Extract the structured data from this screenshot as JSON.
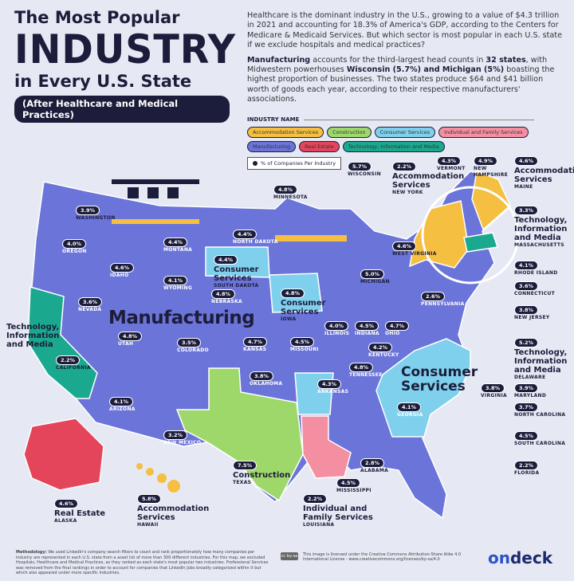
{
  "header": {
    "line1": "The Most Popular",
    "line2": "INDUSTRY",
    "line3": "in Every U.S. State",
    "subtitle": "(After Healthcare and Medical Practices)"
  },
  "intro": {
    "p1": "Healthcare is the dominant industry in the U.S., growing to a value of $4.3 trillion in 2021 and accounting for 18.3% of America's GDP, according to the Centers for Medicare & Medicaid Services. But which sector is most popular in each U.S. state if we exclude hospitals and medical practices?",
    "p2_bold1": "Manufacturing",
    "p2_a": " accounts for the third-largest head counts in ",
    "p2_bold2": "32 states",
    "p2_b": ", with Midwestern powerhouses ",
    "p2_bold3": "Wisconsin (5.7%) and Michigan (5%)",
    "p2_c": " boasting the highest proportion of businesses. The two states produce $64 and $41 billion worth of goods each year, according to their respective manufacturers' associations."
  },
  "legend": {
    "heading": "INDUSTRY NAME",
    "items": [
      {
        "label": "Accommodation Services",
        "color": "#f5bf42"
      },
      {
        "label": "Construction",
        "color": "#9ed86b"
      },
      {
        "label": "Consumer Services",
        "color": "#7fd0ec"
      },
      {
        "label": "Individual and Family Services",
        "color": "#f48fa2"
      },
      {
        "label": "Manufacturing",
        "color": "#6b74d9"
      },
      {
        "label": "Real Estate",
        "color": "#e4455a"
      },
      {
        "label": "Technology, Information and Media",
        "color": "#1aa98f"
      }
    ],
    "key": "% of Companies Per Industry"
  },
  "states": [
    {
      "name": "WASHINGTON",
      "pct": "3.9%"
    },
    {
      "name": "OREGON",
      "pct": "4.0%"
    },
    {
      "name": "IDAHO",
      "pct": "4.6%"
    },
    {
      "name": "MONTANA",
      "pct": "4.4%"
    },
    {
      "name": "WYOMING",
      "pct": "4.1%"
    },
    {
      "name": "NEVADA",
      "pct": "3.6%"
    },
    {
      "name": "UTAH",
      "pct": "4.8%"
    },
    {
      "name": "COLORADO",
      "pct": "3.5%"
    },
    {
      "name": "ARIZONA",
      "pct": "4.1%"
    },
    {
      "name": "NEW MEXICO",
      "pct": "3.2%"
    },
    {
      "name": "CALIFORNIA",
      "pct": "2.2%"
    },
    {
      "name": "NORTH DAKOTA",
      "pct": "4.4%"
    },
    {
      "name": "SOUTH DAKOTA",
      "pct": "4.4%",
      "industry": "Consumer Services"
    },
    {
      "name": "NEBRASKA",
      "pct": "4.8%"
    },
    {
      "name": "KANSAS",
      "pct": "4.7%"
    },
    {
      "name": "OKLAHOMA",
      "pct": "3.8%"
    },
    {
      "name": "TEXAS",
      "pct": "7.5%",
      "industry": "Construction"
    },
    {
      "name": "MINNESOTA",
      "pct": "4.8%"
    },
    {
      "name": "IOWA",
      "pct": "4.8%",
      "industry": "Consumer Services"
    },
    {
      "name": "MISSOURI",
      "pct": "4.5%"
    },
    {
      "name": "ARKANSAS",
      "pct": "4.3%"
    },
    {
      "name": "LOUISIANA",
      "pct": "2.2%",
      "industry": "Individual and Family Services"
    },
    {
      "name": "WISCONSIN",
      "pct": "5.7%"
    },
    {
      "name": "ILLINOIS",
      "pct": "4.0%"
    },
    {
      "name": "MICHIGAN",
      "pct": "5.0%"
    },
    {
      "name": "INDIANA",
      "pct": "4.5%"
    },
    {
      "name": "OHIO",
      "pct": "4.7%"
    },
    {
      "name": "KENTUCKY",
      "pct": "4.2%"
    },
    {
      "name": "TENNESSEE",
      "pct": "4.8%"
    },
    {
      "name": "MISSISSIPPI",
      "pct": "4.5%"
    },
    {
      "name": "ALABAMA",
      "pct": "2.8%"
    },
    {
      "name": "GEORGIA",
      "pct": "4.1%"
    },
    {
      "name": "FLORIDA",
      "pct": "2.2%"
    },
    {
      "name": "SOUTH CAROLINA",
      "pct": "4.5%"
    },
    {
      "name": "NORTH CAROLINA",
      "pct": "3.7%"
    },
    {
      "name": "VIRGINIA",
      "pct": "3.8%"
    },
    {
      "name": "MARYLAND",
      "pct": "3.9%"
    },
    {
      "name": "DELAWARE",
      "pct": "5.2%",
      "industry": "Technology, Information and Media"
    },
    {
      "name": "NEW JERSEY",
      "pct": "3.8%"
    },
    {
      "name": "CONNECTICUT",
      "pct": "3.6%"
    },
    {
      "name": "RHODE ISLAND",
      "pct": "4.1%"
    },
    {
      "name": "MASSACHUSETTS",
      "pct": "3.3%",
      "industry": "Technology, Information and Media"
    },
    {
      "name": "MAINE",
      "pct": "4.6%",
      "industry": "Accommodation Services"
    },
    {
      "name": "NEW HAMPSHIRE",
      "pct": "4.9%"
    },
    {
      "name": "VERMONT",
      "pct": "4.3%"
    },
    {
      "name": "NEW YORK",
      "pct": "2.2%",
      "industry": "Accommodation Services"
    },
    {
      "name": "WEST VIRGINIA",
      "pct": "4.6%"
    },
    {
      "name": "PENNSYLVANIA",
      "pct": "2.6%"
    },
    {
      "name": "ALASKA",
      "pct": "4.6%",
      "industry": "Real Estate"
    },
    {
      "name": "HAWAII",
      "pct": "5.8%",
      "industry": "Accommodation Services"
    }
  ],
  "map_labels": {
    "manufacturing": "Manufacturing",
    "consumer": "Consumer Services",
    "california_industry": "Technology, Information and Media"
  },
  "footer": {
    "methodology_label": "Methodology:",
    "methodology": "We used LinkedIn's company search filters to count and rank proportionately how many companies per industry are represented in each U.S. state from a asset list of more than 300 different industries. For this map, we excluded Hospitals, Healthcare and Medical Practices, as they ranked as each state's most popular two industries. Professional Services was removed from the final rankings in order to account for companies that LinkedIn Jobs broadly categorized within it but which also appeared under more specific industries.",
    "cc_badge": "cc by-sa",
    "license": "This image is licensed under the Creative Commons Attribution-Share Alike 4.0 International License - www.creativecommons.org/licenses/by-sa/4.0",
    "logo_a": "on",
    "logo_b": "deck"
  }
}
